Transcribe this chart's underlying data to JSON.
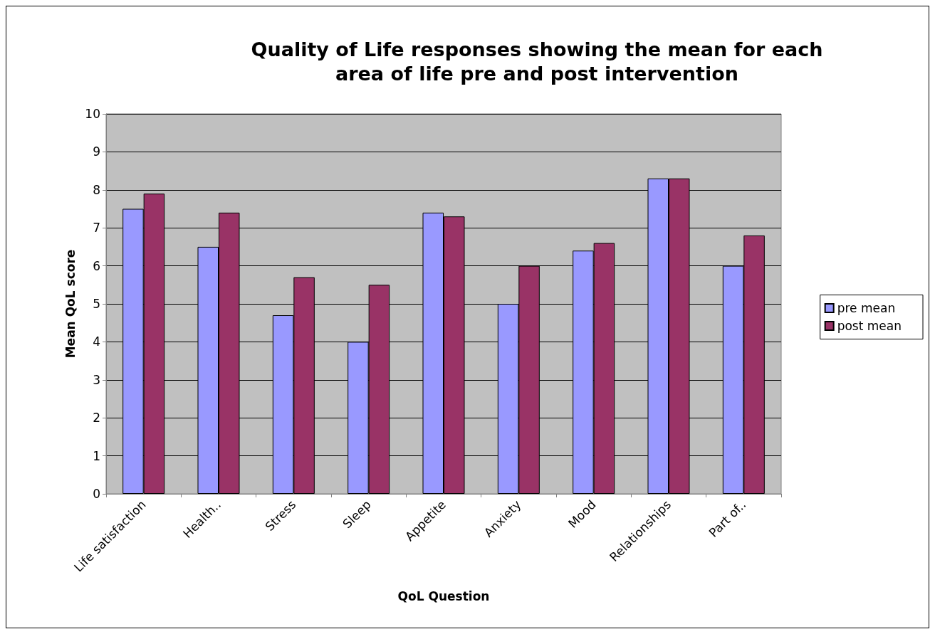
{
  "chart_data": {
    "type": "bar",
    "title": "Quality of Life responses showing the mean for each\narea of life pre and post intervention",
    "xlabel": "QoL Question",
    "ylabel": "Mean QoL score",
    "categories": [
      "Life satisfaction",
      "Health..",
      "Stress",
      "Sleep",
      "Appetite",
      "Anxiety",
      "Mood",
      "Relationships",
      "Part of.."
    ],
    "series": [
      {
        "name": "pre mean",
        "color": "#9999ff",
        "values": [
          7.5,
          6.5,
          4.7,
          4.0,
          7.4,
          5.0,
          6.4,
          8.3,
          6.0
        ]
      },
      {
        "name": "post mean",
        "color": "#993366",
        "values": [
          7.9,
          7.4,
          5.7,
          5.5,
          7.3,
          6.0,
          6.6,
          8.3,
          6.8
        ]
      }
    ],
    "ylim": [
      0,
      10
    ],
    "yticks": [
      0,
      1,
      2,
      3,
      4,
      5,
      6,
      7,
      8,
      9,
      10
    ],
    "grid": "y",
    "legend": "right"
  }
}
